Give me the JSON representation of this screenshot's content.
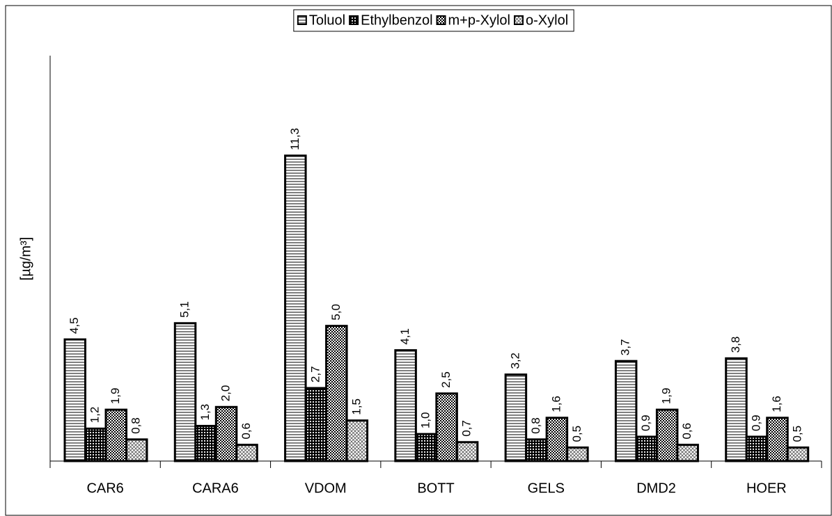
{
  "chart_data": {
    "type": "bar",
    "y_label": "[µg/m³]",
    "categories": [
      "CAR6",
      "CARA6",
      "VDOM",
      "BOTT",
      "GELS",
      "DMD2",
      "HOER"
    ],
    "series": [
      {
        "name": "Toluol",
        "color": "#000000",
        "values": [
          4.5,
          5.1,
          11.3,
          4.1,
          3.2,
          3.7,
          3.8
        ],
        "value_labels": [
          "4,5",
          "5,1",
          "11,3",
          "4,1",
          "3,2",
          "3,7",
          "3,8"
        ]
      },
      {
        "name": "Ethylbenzol",
        "color": "#000000",
        "values": [
          1.2,
          1.3,
          2.7,
          1.0,
          0.8,
          0.9,
          0.9
        ],
        "value_labels": [
          "1,2",
          "1,3",
          "2,7",
          "1,0",
          "0,8",
          "0,9",
          "0,9"
        ]
      },
      {
        "name": "m+p-Xylol",
        "color": "#000000",
        "values": [
          1.9,
          2.0,
          5.0,
          2.5,
          1.6,
          1.9,
          1.6
        ],
        "value_labels": [
          "1,9",
          "2,0",
          "5,0",
          "2,5",
          "1,6",
          "1,9",
          "1,6"
        ]
      },
      {
        "name": "o-Xylol",
        "color": "#000000",
        "values": [
          0.8,
          0.6,
          1.5,
          0.7,
          0.5,
          0.6,
          0.5
        ],
        "value_labels": [
          "0,8",
          "0,6",
          "1,5",
          "0,7",
          "0,5",
          "0,6",
          "0,5"
        ]
      }
    ],
    "ylim": [
      0,
      15
    ],
    "legend": "top"
  }
}
